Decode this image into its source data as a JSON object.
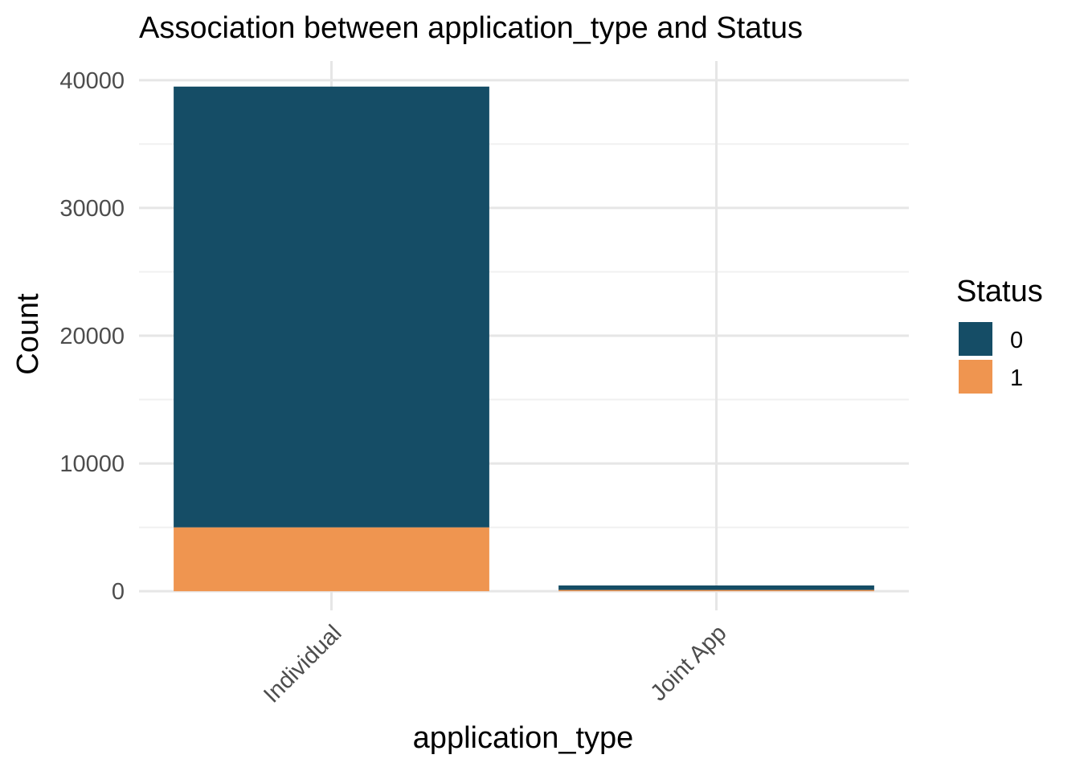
{
  "chart_data": {
    "type": "bar",
    "stacked": true,
    "title": "Association between application_type and Status",
    "xlabel": "application_type",
    "ylabel": "Count",
    "categories": [
      "Individual",
      "Joint App"
    ],
    "series": [
      {
        "name": "0",
        "color": "#154d66",
        "values": [
          34500,
          350
        ]
      },
      {
        "name": "1",
        "color": "#ef9550",
        "values": [
          5000,
          100
        ]
      }
    ],
    "ylim": [
      -1500,
      41500
    ],
    "yticks": [
      0,
      10000,
      20000,
      30000,
      40000
    ],
    "ytick_labels": [
      "0",
      "10000",
      "20000",
      "30000",
      "40000"
    ],
    "grid": true,
    "legend": {
      "title": "Status",
      "position": "right"
    }
  }
}
